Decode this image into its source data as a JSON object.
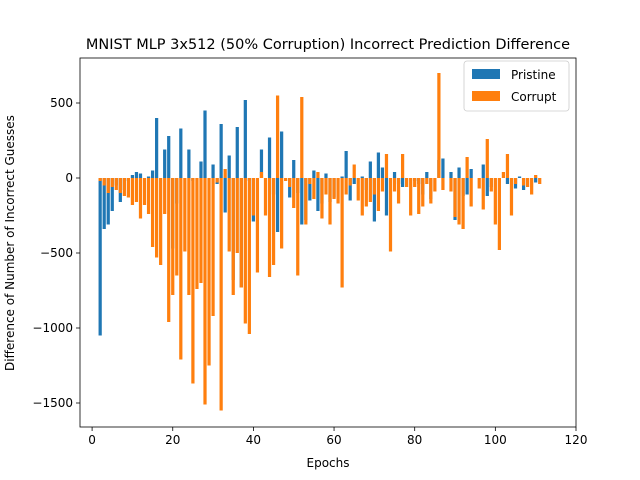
{
  "chart_data": {
    "type": "bar",
    "title": "MNIST MLP 3x512 (50% Corruption) Incorrect Prediction Difference",
    "xlabel": "Epochs",
    "ylabel": "Difference of Number of Incorrect Guesses",
    "xlim": [
      -3,
      120
    ],
    "ylim": [
      -1660,
      800
    ],
    "xticks": [
      0,
      20,
      40,
      60,
      80,
      100,
      120
    ],
    "yticks": [
      -1500,
      -1000,
      -500,
      0,
      500
    ],
    "ytick_labels": [
      "−1500",
      "−1000",
      "−500",
      "0",
      "500"
    ],
    "legend_position": "top-right",
    "grid": false,
    "colors": {
      "pristine": "#1f77b4",
      "corrupt": "#ff7f0e"
    },
    "series": [
      {
        "name": "Pristine",
        "color": "#1f77b4",
        "x": [
          2,
          3,
          4,
          5,
          6,
          7,
          8,
          9,
          10,
          11,
          12,
          13,
          14,
          15,
          16,
          17,
          18,
          19,
          20,
          21,
          22,
          23,
          24,
          25,
          26,
          27,
          28,
          29,
          30,
          31,
          32,
          33,
          34,
          35,
          36,
          37,
          38,
          39,
          40,
          41,
          42,
          43,
          44,
          45,
          46,
          47,
          48,
          49,
          50,
          51,
          52,
          53,
          54,
          55,
          56,
          57,
          58,
          59,
          60,
          61,
          62,
          63,
          64,
          65,
          66,
          67,
          68,
          69,
          70,
          71,
          72,
          73,
          74,
          75,
          76,
          77,
          78,
          79,
          80,
          81,
          82,
          83,
          84,
          85,
          86,
          87,
          88,
          89,
          90,
          91,
          92,
          93,
          94,
          95,
          96,
          97,
          98,
          99,
          100,
          101,
          102,
          103,
          104,
          105,
          106,
          107,
          108,
          109,
          110,
          111,
          112,
          113,
          114
        ],
        "values": [
          -1050,
          -340,
          -310,
          -220,
          -50,
          -160,
          -80,
          -20,
          20,
          40,
          30,
          0,
          10,
          50,
          400,
          0,
          190,
          280,
          -470,
          -170,
          330,
          0,
          190,
          -20,
          0,
          110,
          450,
          0,
          90,
          -40,
          360,
          -230,
          150,
          -680,
          340,
          -730,
          520,
          -20,
          -290,
          0,
          190,
          0,
          270,
          -110,
          -360,
          310,
          0,
          -130,
          120,
          -100,
          -310,
          -280,
          -150,
          50,
          -220,
          -170,
          30,
          -160,
          -130,
          0,
          10,
          180,
          -150,
          -40,
          0,
          10,
          -80,
          110,
          -290,
          170,
          70,
          -250,
          0,
          40,
          -40,
          -60,
          0,
          0,
          -20,
          -40,
          -110,
          40,
          -140,
          0,
          120,
          130,
          0,
          40,
          -280,
          70,
          -120,
          -110,
          60,
          0,
          0,
          90,
          -120,
          -60,
          0,
          0,
          0,
          -40,
          0,
          -70,
          10,
          -80,
          0,
          0,
          -30,
          0,
          0,
          0,
          0
        ]
      },
      {
        "name": "Corrupt",
        "color": "#ff7f0e",
        "x": [
          2,
          3,
          4,
          5,
          6,
          7,
          8,
          9,
          10,
          11,
          12,
          13,
          14,
          15,
          16,
          17,
          18,
          19,
          20,
          21,
          22,
          23,
          24,
          25,
          26,
          27,
          28,
          29,
          30,
          31,
          32,
          33,
          34,
          35,
          36,
          37,
          38,
          39,
          40,
          41,
          42,
          43,
          44,
          45,
          46,
          47,
          48,
          49,
          50,
          51,
          52,
          53,
          54,
          55,
          56,
          57,
          58,
          59,
          60,
          61,
          62,
          63,
          64,
          65,
          66,
          67,
          68,
          69,
          70,
          71,
          72,
          73,
          74,
          75,
          76,
          77,
          78,
          79,
          80,
          81,
          82,
          83,
          84,
          85,
          86,
          87,
          88,
          89,
          90,
          91,
          92,
          93,
          94,
          95,
          96,
          97,
          98,
          99,
          100,
          101,
          102,
          103,
          104,
          105,
          106,
          107,
          108,
          109,
          110,
          111,
          112,
          113,
          114
        ],
        "values": [
          -20,
          -50,
          -100,
          -60,
          -80,
          -100,
          -120,
          -130,
          -180,
          -160,
          -270,
          -180,
          -240,
          -460,
          -530,
          -580,
          -240,
          -960,
          -780,
          -650,
          -1210,
          -490,
          -780,
          -1370,
          -740,
          -700,
          -1510,
          -1250,
          -920,
          -30,
          -1550,
          60,
          -490,
          -780,
          -500,
          -730,
          -970,
          -1040,
          -250,
          -630,
          40,
          -250,
          -660,
          -580,
          550,
          -470,
          -20,
          -60,
          -200,
          -650,
          540,
          -310,
          -40,
          -140,
          40,
          -270,
          -110,
          -310,
          -140,
          -170,
          -730,
          -110,
          -50,
          90,
          -150,
          -250,
          -190,
          -160,
          -110,
          -220,
          -90,
          160,
          -490,
          -90,
          -170,
          160,
          -60,
          -250,
          -60,
          -240,
          -190,
          -40,
          -170,
          -90,
          700,
          -80,
          0,
          -90,
          -260,
          -310,
          -340,
          140,
          -190,
          0,
          -70,
          -210,
          260,
          -90,
          -310,
          -480,
          40,
          160,
          -250,
          -40,
          0,
          -50,
          -60,
          -110,
          20,
          -40,
          0,
          0,
          0
        ]
      }
    ]
  }
}
